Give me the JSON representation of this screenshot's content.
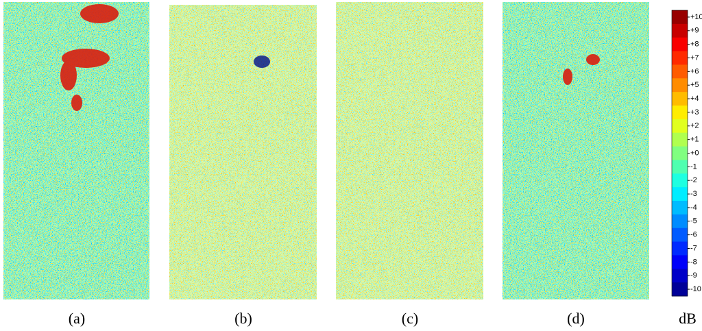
{
  "panels": [
    {
      "label": "(a)"
    },
    {
      "label": "(b)"
    },
    {
      "label": "(c)"
    },
    {
      "label": "(d)"
    }
  ],
  "colorbar": {
    "ticks": [
      "+10",
      "+9",
      "+8",
      "+7",
      "+6",
      "+5",
      "+4",
      "+3",
      "+2",
      "+1",
      "+0",
      "-1",
      "-2",
      "-3",
      "-4",
      "-5",
      "-6",
      "-7",
      "-8",
      "-9",
      "-10"
    ],
    "unit": "dB"
  }
}
